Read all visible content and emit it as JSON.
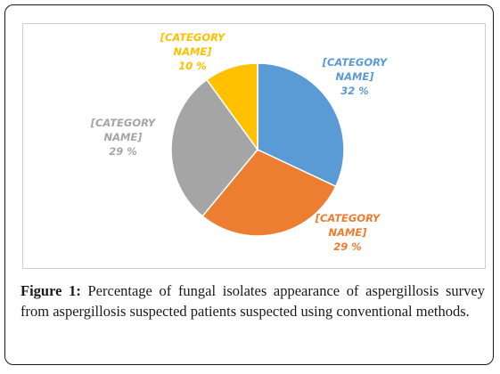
{
  "chart_data": {
    "type": "pie",
    "slices": [
      {
        "label": "[CATEGORY NAME]",
        "value": 32,
        "value_label": "32 %",
        "color": "#5b9bd5"
      },
      {
        "label": "[CATEGORY NAME]",
        "value": 29,
        "value_label": "29 %",
        "color": "#ed7d31"
      },
      {
        "label": "[CATEGORY NAME]",
        "value": 29,
        "value_label": "29 %",
        "color": "#a5a5a5"
      },
      {
        "label": "[CATEGORY NAME]",
        "value": 10,
        "value_label": "10 %",
        "color": "#ffc000"
      }
    ]
  },
  "caption": {
    "label": "Figure 1:",
    "text": " Percentage of fungal isolates appearance of aspergillosis survey from aspergillosis suspected patients suspected using conventional methods."
  }
}
